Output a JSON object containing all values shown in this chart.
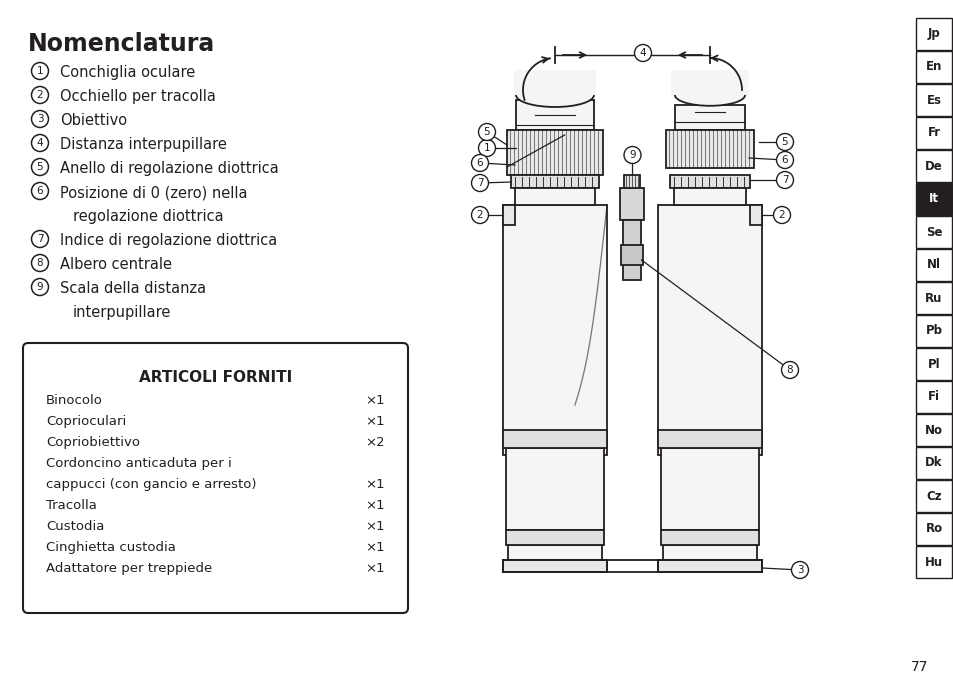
{
  "title": "Nomenclatura",
  "numbered_items": [
    {
      "num": "1",
      "text": "Conchiglia oculare"
    },
    {
      "num": "2",
      "text": "Occhiello per tracolla"
    },
    {
      "num": "3",
      "text": "Obiettivo"
    },
    {
      "num": "4",
      "text": "Distanza interpupillare"
    },
    {
      "num": "5",
      "text": "Anello di regolazione diottrica"
    },
    {
      "num": "6",
      "text": "Posizione di 0 (zero) nella",
      "text2": "regolazione diottrica"
    },
    {
      "num": "7",
      "text": "Indice di regolazione diottrica"
    },
    {
      "num": "8",
      "text": "Albero centrale"
    },
    {
      "num": "9",
      "text": "Scala della distanza",
      "text2": "interpupillare"
    }
  ],
  "box_title": "ARTICOLI FORNITI",
  "box_items": [
    {
      "name": "Binocolo",
      "qty": "×1"
    },
    {
      "name": "Coprioculari",
      "qty": "×1"
    },
    {
      "name": "Copriobiettivo",
      "qty": "×2"
    },
    {
      "name": "Cordoncino anticaduta per i",
      "name2": "cappucci (con gancio e arresto)",
      "qty": "×1"
    },
    {
      "name": "Tracolla",
      "qty": "×1"
    },
    {
      "name": "Custodia",
      "qty": "×1"
    },
    {
      "name": "Cinghietta custodia",
      "qty": "×1"
    },
    {
      "name": "Adattatore per treppiede",
      "qty": "×1"
    }
  ],
  "lang_tabs": [
    "Jp",
    "En",
    "Es",
    "Fr",
    "De",
    "It",
    "Se",
    "Nl",
    "Ru",
    "Pb",
    "Pl",
    "Fi",
    "No",
    "Dk",
    "Cz",
    "Ro",
    "Hu"
  ],
  "active_tab": "It",
  "page_number": "77",
  "bg_color": "#ffffff",
  "text_color": "#231f20",
  "tab_border_color": "#231f20",
  "active_tab_bg": "#231f20",
  "active_tab_text": "#ffffff"
}
